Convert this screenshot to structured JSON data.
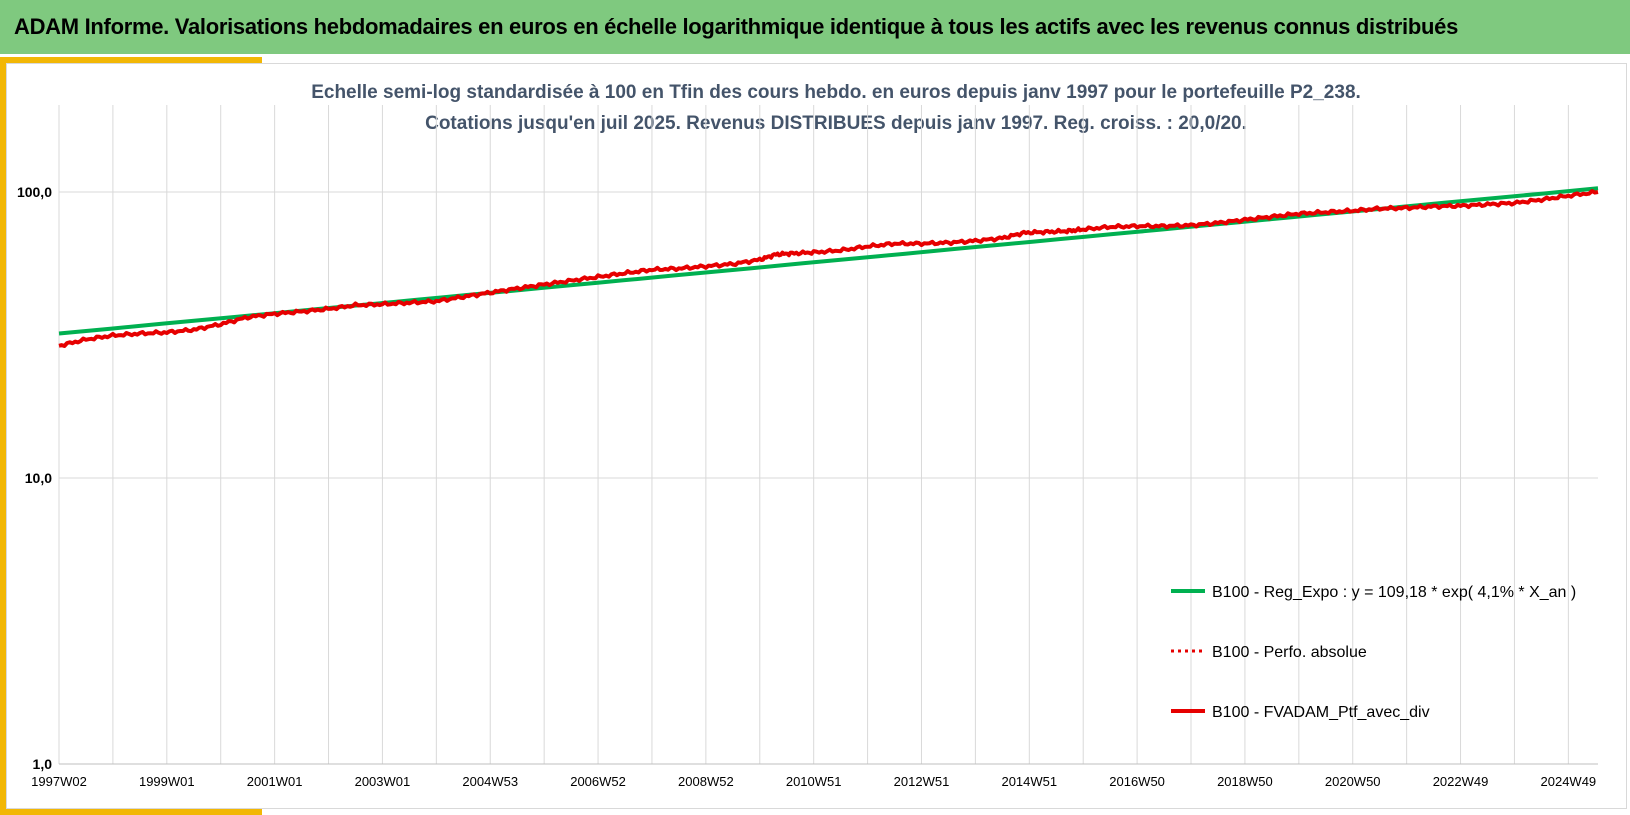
{
  "header": {
    "title": "ADAM Informe. Valorisations hebdomadaires en euros en échelle logarithmique identique à tous les actifs avec les revenus connus distribués"
  },
  "colors": {
    "header_bg": "#7fc97f",
    "accent": "#f2b705",
    "regression": "#00b050",
    "portfolio": "#e60000"
  },
  "chart_data": {
    "type": "line",
    "title_lines": [
      "Echelle semi-log standardisée  à 100 en Tfin des cours hebdo.  en euros depuis janv 1997 pour le portefeuille P2_238.",
      "Cotations jusqu'en juil 2025. Revenus DISTRIBUES depuis janv 1997. Reg. croiss. : 20,0/20."
    ],
    "y_scale": "log",
    "ylim": [
      1,
      200
    ],
    "y_ticks": [
      {
        "value": 100,
        "label": "100,0"
      },
      {
        "value": 10,
        "label": "10,0"
      },
      {
        "value": 1,
        "label": "1,0"
      }
    ],
    "xlim": [
      1997.0,
      2025.55
    ],
    "x_ticks": [
      {
        "value": 1997.0,
        "label": "1997W02"
      },
      {
        "value": 1999.0,
        "label": "1999W01"
      },
      {
        "value": 2001.0,
        "label": "2001W01"
      },
      {
        "value": 2003.0,
        "label": "2003W01"
      },
      {
        "value": 2005.0,
        "label": "2004W53"
      },
      {
        "value": 2007.0,
        "label": "2006W52"
      },
      {
        "value": 2009.0,
        "label": "2008W52"
      },
      {
        "value": 2011.0,
        "label": "2010W51"
      },
      {
        "value": 2013.0,
        "label": "2012W51"
      },
      {
        "value": 2015.0,
        "label": "2014W51"
      },
      {
        "value": 2017.0,
        "label": "2016W50"
      },
      {
        "value": 2019.0,
        "label": "2018W50"
      },
      {
        "value": 2021.0,
        "label": "2020W50"
      },
      {
        "value": 2023.0,
        "label": "2022W49"
      },
      {
        "value": 2025.0,
        "label": "2024W49"
      }
    ],
    "legend_position": "bottom-right",
    "series": [
      {
        "name": "B100 - Reg_Expo : y = 109,18 * exp( 4,1% *  X_an )",
        "style": "solid",
        "color": "#00b050",
        "x": [
          1997.0,
          2025.55
        ],
        "y": [
          32.0,
          103.0
        ]
      },
      {
        "name": "B100 - Perfo. absolue",
        "style": "dotted",
        "color": "#e60000",
        "x": [],
        "y": []
      },
      {
        "name": "B100 - FVADAM_Ptf_avec_div",
        "style": "solid",
        "color": "#e60000",
        "x": [
          1997.0,
          1997.5,
          1998.0,
          1998.5,
          1999.0,
          1999.5,
          2000.0,
          2000.5,
          2001.0,
          2001.5,
          2002.0,
          2002.5,
          2003.0,
          2003.5,
          2004.0,
          2004.5,
          2005.0,
          2005.5,
          2006.0,
          2006.5,
          2007.0,
          2007.5,
          2008.0,
          2008.5,
          2009.0,
          2009.5,
          2010.0,
          2010.3,
          2010.6,
          2011.0,
          2011.5,
          2012.0,
          2012.5,
          2013.0,
          2013.5,
          2014.0,
          2014.5,
          2014.9,
          2015.3,
          2015.7,
          2016.0,
          2016.5,
          2017.0,
          2017.5,
          2018.0,
          2018.5,
          2019.0,
          2019.5,
          2020.0,
          2020.5,
          2021.0,
          2021.5,
          2022.0,
          2022.5,
          2023.0,
          2023.5,
          2024.0,
          2024.5,
          2025.0,
          2025.55
        ],
        "y": [
          29.0,
          30.5,
          31.5,
          32.0,
          32.3,
          33.0,
          34.5,
          36.5,
          37.5,
          38.2,
          39.0,
          40.2,
          40.5,
          41.0,
          41.5,
          43.0,
          44.5,
          46.0,
          47.5,
          49.0,
          50.5,
          52.0,
          53.5,
          54.0,
          55.0,
          56.0,
          58.0,
          60.5,
          61.0,
          61.5,
          62.5,
          64.5,
          66.0,
          66.0,
          66.5,
          67.5,
          69.0,
          72.0,
          72.5,
          73.0,
          74.0,
          75.5,
          76.0,
          76.0,
          76.5,
          78.0,
          80.0,
          82.0,
          84.0,
          85.0,
          86.0,
          87.5,
          88.0,
          89.0,
          89.5,
          90.5,
          91.5,
          94.0,
          97.0,
          100.0
        ]
      }
    ]
  }
}
